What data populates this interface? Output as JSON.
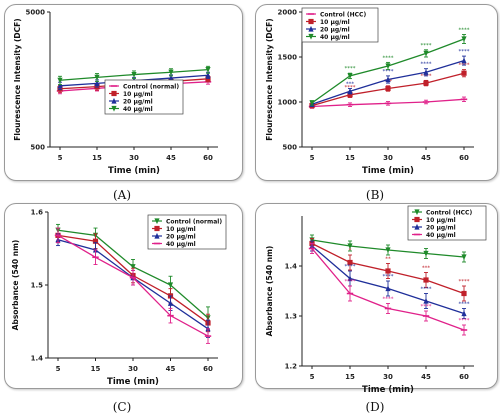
{
  "chart_data": [
    {
      "type": "line",
      "caption": "(A)",
      "xlabel": "Time (min)",
      "ylabel": "Flourescence Intensity (DCF)",
      "x": [
        5,
        15,
        30,
        45,
        60
      ],
      "x_ticks": [
        "5",
        "15",
        "30",
        "45",
        "60"
      ],
      "ylim": [
        500,
        5000
      ],
      "y_scale": "log",
      "y_ticks": [
        "500",
        "5000"
      ],
      "legend_position": "center-right",
      "series": [
        {
          "name": "Control (normal)",
          "color": "#e0218a",
          "marker": "line",
          "values": [
            1300,
            1360,
            1420,
            1470,
            1520
          ],
          "err": [
            60,
            60,
            60,
            60,
            60
          ],
          "sig": []
        },
        {
          "name": "10 µg/ml",
          "color": "#c0202a",
          "marker": "square",
          "values": [
            1350,
            1400,
            1470,
            1530,
            1600
          ],
          "err": [
            80,
            80,
            80,
            80,
            80
          ],
          "sig": []
        },
        {
          "name": "20 µg/ml",
          "color": "#1f2f9a",
          "marker": "triangle",
          "values": [
            1420,
            1480,
            1550,
            1620,
            1700
          ],
          "err": [
            90,
            90,
            90,
            90,
            90
          ],
          "sig": []
        },
        {
          "name": "40 µg/ml",
          "color": "#1f8a2a",
          "marker": "triangle-down",
          "values": [
            1560,
            1640,
            1720,
            1790,
            1870
          ],
          "err": [
            110,
            110,
            110,
            110,
            110
          ],
          "sig": []
        }
      ]
    },
    {
      "type": "line",
      "caption": "(B)",
      "xlabel": "Time (min)",
      "ylabel": "Flourescence Intensity (DCF)",
      "x": [
        5,
        15,
        30,
        45,
        60
      ],
      "x_ticks": [
        "5",
        "15",
        "30",
        "45",
        "60"
      ],
      "ylim": [
        500,
        2000
      ],
      "y_scale": "linear",
      "y_ticks": [
        "500",
        "1000",
        "1500",
        "2000"
      ],
      "legend_position": "top-left",
      "series": [
        {
          "name": "Control (HCC)",
          "color": "#e0218a",
          "marker": "line",
          "values": [
            950,
            970,
            985,
            1000,
            1030
          ],
          "err": [
            20,
            20,
            20,
            20,
            25
          ],
          "sig": [
            "",
            "",
            "",
            "",
            ""
          ]
        },
        {
          "name": "10 µg/ml",
          "color": "#c0202a",
          "marker": "square",
          "values": [
            960,
            1080,
            1150,
            1210,
            1320
          ],
          "err": [
            25,
            30,
            30,
            30,
            40
          ],
          "sig": [
            "",
            "****",
            "***",
            "****",
            "****"
          ]
        },
        {
          "name": "20 µg/ml",
          "color": "#1f2f9a",
          "marker": "triangle",
          "values": [
            975,
            1120,
            1250,
            1330,
            1460
          ],
          "err": [
            25,
            30,
            40,
            40,
            50
          ],
          "sig": [
            "",
            "***",
            "****",
            "****",
            "****"
          ]
        },
        {
          "name": "40 µg/ml",
          "color": "#1f8a2a",
          "marker": "triangle-down",
          "values": [
            990,
            1290,
            1400,
            1540,
            1700
          ],
          "err": [
            25,
            30,
            40,
            40,
            50
          ],
          "sig": [
            "",
            "****",
            "****",
            "****",
            "****"
          ]
        }
      ]
    },
    {
      "type": "line",
      "caption": "(C)",
      "xlabel": "Time (min)",
      "ylabel": "Absorbance (540 nm)",
      "x": [
        5,
        15,
        30,
        45,
        60
      ],
      "x_ticks": [
        "5",
        "15",
        "30",
        "45",
        "60"
      ],
      "ylim": [
        1.4,
        1.6
      ],
      "y_scale": "linear",
      "y_ticks": [
        "1.4",
        "1.5",
        "1.6"
      ],
      "legend_position": "top-right",
      "series": [
        {
          "name": "Control (normal)",
          "color": "#1f8a2a",
          "marker": "triangle-down",
          "values": [
            1.575,
            1.568,
            1.525,
            1.5,
            1.455
          ],
          "err": [
            0.008,
            0.01,
            0.01,
            0.012,
            0.015
          ],
          "sig": []
        },
        {
          "name": "10 µg/ml",
          "color": "#c0202a",
          "marker": "square",
          "values": [
            1.568,
            1.56,
            1.513,
            1.485,
            1.448
          ],
          "err": [
            0.01,
            0.01,
            0.01,
            0.01,
            0.012
          ],
          "sig": []
        },
        {
          "name": "20 µg/ml",
          "color": "#1f2f9a",
          "marker": "triangle",
          "values": [
            1.562,
            1.548,
            1.51,
            1.475,
            1.44
          ],
          "err": [
            0.008,
            0.01,
            0.01,
            0.01,
            0.012
          ],
          "sig": []
        },
        {
          "name": "40 µg/ml",
          "color": "#e0218a",
          "marker": "line",
          "values": [
            1.568,
            1.538,
            1.51,
            1.458,
            1.43
          ],
          "err": [
            0.01,
            0.01,
            0.01,
            0.01,
            0.01
          ],
          "sig": []
        }
      ]
    },
    {
      "type": "line",
      "caption": "(D)",
      "xlabel": "Time (min)",
      "ylabel": "Absorbance (540 nm)",
      "x": [
        5,
        15,
        30,
        45,
        60
      ],
      "x_ticks": [
        "5",
        "15",
        "30",
        "45",
        "60"
      ],
      "ylim": [
        1.2,
        1.5
      ],
      "y_scale": "linear",
      "y_ticks": [
        "1.2",
        "1.3",
        "1.4"
      ],
      "legend_position": "top-right",
      "series": [
        {
          "name": "Control (HCC)",
          "color": "#1f8a2a",
          "marker": "triangle-down",
          "values": [
            1.452,
            1.44,
            1.432,
            1.425,
            1.418
          ],
          "err": [
            0.01,
            0.01,
            0.01,
            0.01,
            0.01
          ],
          "sig": [
            "",
            "",
            "",
            "",
            ""
          ]
        },
        {
          "name": "10 µg/ml",
          "color": "#c0202a",
          "marker": "square",
          "values": [
            1.445,
            1.407,
            1.39,
            1.372,
            1.345
          ],
          "err": [
            0.01,
            0.015,
            0.015,
            0.015,
            0.015
          ],
          "sig": [
            "",
            "*",
            "**",
            "***",
            "****"
          ]
        },
        {
          "name": "20 µg/ml",
          "color": "#1f2f9a",
          "marker": "triangle",
          "values": [
            1.44,
            1.375,
            1.355,
            1.33,
            1.305
          ],
          "err": [
            0.01,
            0.015,
            0.015,
            0.015,
            0.01
          ],
          "sig": [
            "",
            "****",
            "****",
            "****",
            "****"
          ]
        },
        {
          "name": "40 µg/ml",
          "color": "#e0218a",
          "marker": "line",
          "values": [
            1.435,
            1.345,
            1.315,
            1.3,
            1.272
          ],
          "err": [
            0.01,
            0.015,
            0.01,
            0.01,
            0.01
          ],
          "sig": [
            "",
            "****",
            "****",
            "****",
            "****"
          ]
        }
      ]
    }
  ]
}
